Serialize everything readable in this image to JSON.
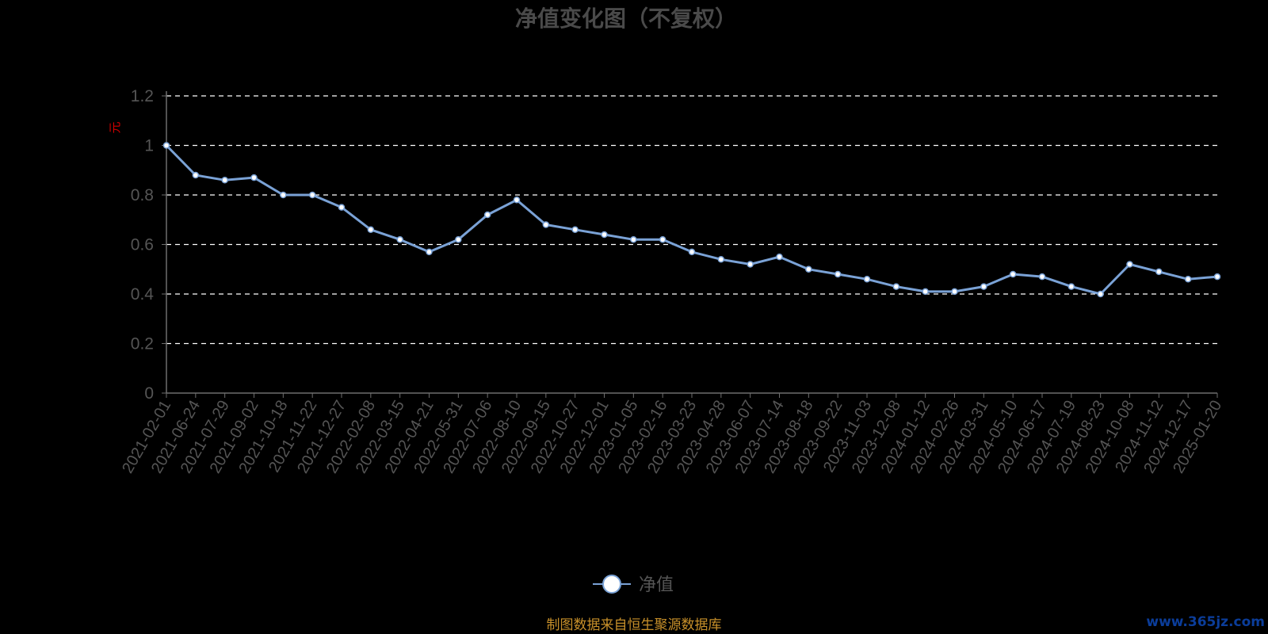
{
  "watermark": "www.365jz.com",
  "source_note": "制图数据来自恒生聚源数据库",
  "colors": {
    "line": "#7aa2d6",
    "grid": "#ffffff",
    "axis": "#6e6e6e",
    "marker_fill": "#ffffff"
  },
  "chart_data": {
    "type": "line",
    "title": "净值变化图（不复权）",
    "xlabel": "",
    "ylabel": "元",
    "ylim": [
      0,
      1.2
    ],
    "yticks": [
      "0",
      "0.2",
      "0.4",
      "0.6",
      "0.8",
      "1",
      "1.2"
    ],
    "grid": "horizontal-dashed",
    "legend": "bottom-center",
    "x": [
      "2021-02-01",
      "2021-06-24",
      "2021-07-29",
      "2021-09-02",
      "2021-10-18",
      "2021-11-22",
      "2021-12-27",
      "2022-02-08",
      "2022-03-15",
      "2022-04-21",
      "2022-05-31",
      "2022-07-06",
      "2022-08-10",
      "2022-09-15",
      "2022-10-27",
      "2022-12-01",
      "2023-01-05",
      "2023-02-16",
      "2023-03-23",
      "2023-04-28",
      "2023-06-07",
      "2023-07-14",
      "2023-08-18",
      "2023-09-22",
      "2023-11-03",
      "2023-12-08",
      "2024-01-12",
      "2024-02-26",
      "2024-03-31",
      "2024-05-10",
      "2024-06-17",
      "2024-07-19",
      "2024-08-23",
      "2024-10-08",
      "2024-11-12",
      "2024-12-17",
      "2025-01-20"
    ],
    "series": [
      {
        "name": "净值",
        "values": [
          1.0,
          0.88,
          0.86,
          0.87,
          0.8,
          0.8,
          0.75,
          0.66,
          0.62,
          0.57,
          0.62,
          0.72,
          0.78,
          0.68,
          0.66,
          0.64,
          0.62,
          0.62,
          0.57,
          0.54,
          0.52,
          0.55,
          0.5,
          0.48,
          0.46,
          0.43,
          0.41,
          0.41,
          0.43,
          0.48,
          0.47,
          0.43,
          0.4,
          0.52,
          0.49,
          0.46,
          0.47
        ]
      }
    ]
  }
}
